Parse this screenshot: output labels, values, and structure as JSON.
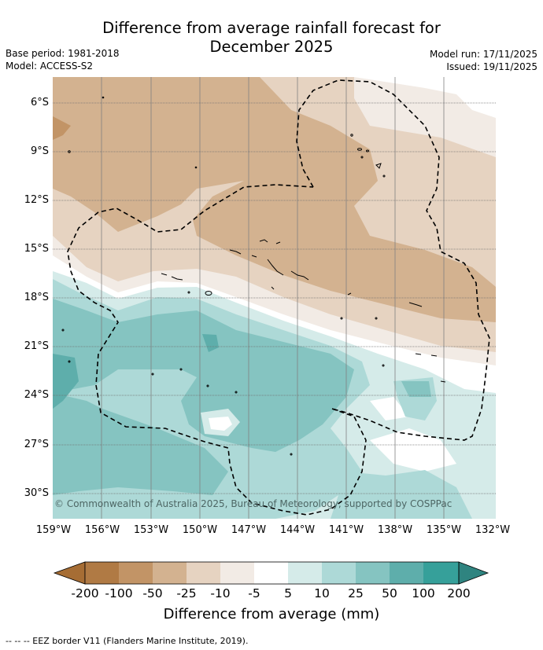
{
  "title_line1": "Difference from average rainfall forecast for",
  "title_line2": "December 2025",
  "base_period": "Base period: 1981-2018",
  "model": "Model: ACCESS-S2",
  "model_run": "Model run: 17/11/2025",
  "issued": "Issued: 19/11/2025",
  "copyright": "© Commonwealth of Australia 2025, Bureau of Meteorology, supported by COSPPac",
  "lat_labels": [
    "6°S",
    "9°S",
    "12°S",
    "15°S",
    "18°S",
    "21°S",
    "24°S",
    "27°S",
    "30°S"
  ],
  "lon_labels": [
    "159°W",
    "156°W",
    "153°W",
    "150°W",
    "147°W",
    "144°W",
    "141°W",
    "138°W",
    "135°W",
    "132°W"
  ],
  "colorbar": {
    "title": "Difference from average (mm)",
    "ticks": [
      "-200",
      "-100",
      "-50",
      "-25",
      "-10",
      "-5",
      "5",
      "10",
      "25",
      "50",
      "100",
      "200"
    ],
    "colors": [
      "#a66d34",
      "#b07a44",
      "#c29466",
      "#d3b290",
      "#e6d3c1",
      "#f2ebe5",
      "#ffffff",
      "#d5ebe9",
      "#add9d7",
      "#85c4c1",
      "#5eaeab",
      "#36a09a",
      "#2f8480"
    ]
  },
  "footer": "-- -- -- EEZ border V11 (Flanders Marine Institute, 2019)."
}
